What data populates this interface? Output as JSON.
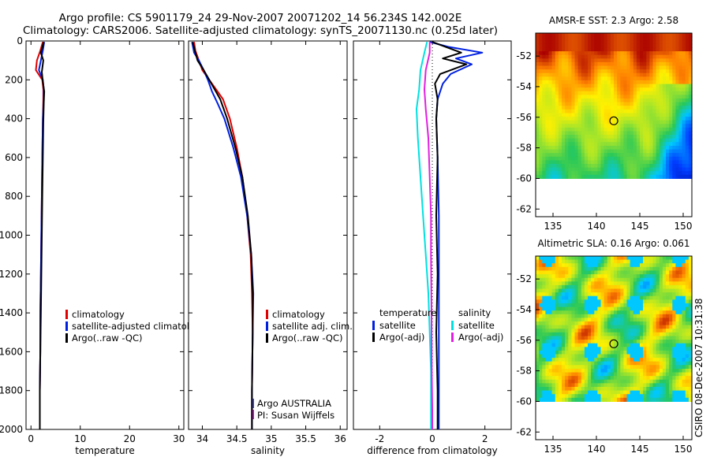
{
  "title": {
    "line1": "Argo profile: CS 5901179_24 29-Nov-2007 20071202_14 56.234S 142.002E",
    "line2": "Climatology: CARS2006. Satellite-adjusted climatology: synTS_20071130.nc (0.25d later)"
  },
  "footer": {
    "agency": "Argo AUSTRALIA",
    "pi": "PI: Susan Wijffels",
    "stamp": "CSIRO 08-Dec-2007 10:31:38"
  },
  "colors": {
    "climatology": "#e00000",
    "satellite": "#0020e0",
    "argo": "#000000",
    "sal_satellite": "#00e0e0",
    "sal_argo": "#e020e0"
  },
  "chart_data": [
    {
      "type": "line",
      "xlabel": "temperature",
      "ylabel": "",
      "xlim": [
        -1,
        31
      ],
      "ylim": [
        2000,
        0
      ],
      "xticks": [
        0,
        10,
        20,
        30
      ],
      "yticks": [
        0,
        200,
        400,
        600,
        800,
        1000,
        1200,
        1400,
        1600,
        1800,
        2000
      ],
      "legend": [
        "climatology",
        "satellite-adjusted climatology",
        "Argo(..raw -QC)"
      ],
      "series": [
        {
          "name": "climatology",
          "color": "#e00000",
          "x": [
            2.4,
            1.9,
            1.2,
            1.0,
            2.3,
            2.5,
            2.5,
            2.4,
            2.3,
            2.2,
            2.1,
            2.0,
            1.9,
            1.9,
            1.8,
            1.8,
            1.8
          ],
          "y": [
            5,
            50,
            100,
            150,
            200,
            250,
            300,
            400,
            600,
            800,
            1000,
            1200,
            1400,
            1600,
            1800,
            1950,
            2000
          ]
        },
        {
          "name": "satellite-adjusted climatology",
          "color": "#0020e0",
          "x": [
            2.7,
            2.4,
            2.0,
            1.6,
            2.4,
            2.6,
            2.6,
            2.4,
            2.3,
            2.2,
            2.1,
            2.0,
            1.9,
            1.9,
            1.8,
            1.8,
            1.8
          ],
          "y": [
            5,
            50,
            100,
            150,
            200,
            250,
            300,
            400,
            600,
            800,
            1000,
            1200,
            1400,
            1600,
            1800,
            1950,
            2000
          ]
        },
        {
          "name": "Argo(..raw -QC)",
          "color": "#000000",
          "x": [
            2.6,
            2.0,
            2.5,
            2.2,
            2.4,
            2.7,
            2.6,
            2.5,
            2.4,
            2.3,
            2.2,
            2.1,
            2.0,
            1.9,
            1.8,
            1.8,
            1.8
          ],
          "y": [
            5,
            60,
            100,
            160,
            210,
            260,
            320,
            420,
            600,
            800,
            1000,
            1200,
            1400,
            1600,
            1800,
            1950,
            2000
          ]
        }
      ]
    },
    {
      "type": "line",
      "xlabel": "salinity",
      "ylabel": "",
      "xlim": [
        33.8,
        36.1
      ],
      "ylim": [
        2000,
        0
      ],
      "xticks": [
        34,
        34.5,
        35,
        35.5,
        36
      ],
      "xticklabels": [
        "34",
        "34.5",
        "35",
        "35.5",
        "36"
      ],
      "legend": [
        "climatology",
        "satellite adj. clim.",
        "Argo(..raw -QC)"
      ],
      "series": [
        {
          "name": "climatology",
          "color": "#e00000",
          "x": [
            33.88,
            33.9,
            33.95,
            34.0,
            34.1,
            34.2,
            34.3,
            34.4,
            34.5,
            34.58,
            34.65,
            34.7,
            34.72,
            34.73,
            34.72,
            34.72
          ],
          "y": [
            5,
            50,
            100,
            150,
            200,
            250,
            300,
            400,
            550,
            700,
            900,
            1100,
            1300,
            1500,
            1800,
            2000
          ]
        },
        {
          "name": "satellite adj. clim.",
          "color": "#0020e0",
          "x": [
            33.85,
            33.88,
            33.95,
            34.02,
            34.08,
            34.14,
            34.22,
            34.32,
            34.45,
            34.56,
            34.65,
            34.71,
            34.74,
            34.73,
            34.72,
            34.72
          ],
          "y": [
            5,
            60,
            100,
            150,
            200,
            260,
            320,
            400,
            550,
            700,
            900,
            1100,
            1300,
            1500,
            1800,
            2000
          ]
        },
        {
          "name": "Argo(..raw -QC)",
          "color": "#000000",
          "x": [
            33.86,
            33.9,
            33.93,
            34.02,
            34.1,
            34.18,
            34.26,
            34.36,
            34.48,
            34.58,
            34.66,
            34.71,
            34.73,
            34.73,
            34.72,
            34.72
          ],
          "y": [
            5,
            60,
            100,
            150,
            200,
            250,
            300,
            400,
            550,
            700,
            900,
            1100,
            1300,
            1500,
            1800,
            2000
          ]
        }
      ]
    },
    {
      "type": "line",
      "xlabel": "difference from climatology",
      "ylabel": "",
      "xlim": [
        -3,
        3
      ],
      "ylim": [
        2000,
        0
      ],
      "xticks": [
        -2,
        0,
        2
      ],
      "legend_temperature": [
        "satellite",
        "Argo(-adj)"
      ],
      "legend_salinity": [
        "satellite",
        "Argo(-adj)"
      ],
      "legend_headers": [
        "temperature",
        "salinity"
      ],
      "series": [
        {
          "name": "satellite",
          "group": "temperature",
          "color": "#0020e0",
          "x": [
            -0.1,
            0.6,
            1.9,
            0.9,
            1.5,
            0.7,
            0.4,
            0.2,
            0.15,
            0.2,
            0.25,
            0.25,
            0.25,
            0.25,
            0.25
          ],
          "y": [
            5,
            30,
            60,
            90,
            120,
            170,
            220,
            300,
            400,
            600,
            900,
            1200,
            1500,
            1800,
            2000
          ]
        },
        {
          "name": "Argo(-adj)",
          "group": "temperature",
          "color": "#000000",
          "x": [
            0.0,
            0.5,
            1.1,
            0.4,
            1.3,
            0.3,
            0.1,
            0.2,
            0.15,
            0.2,
            0.15,
            0.2,
            0.15,
            0.2,
            0.2
          ],
          "y": [
            5,
            30,
            60,
            90,
            120,
            170,
            220,
            300,
            400,
            600,
            900,
            1200,
            1500,
            1800,
            2000
          ]
        },
        {
          "name": "satellite",
          "group": "salinity",
          "color": "#00e0e0",
          "x": [
            -0.2,
            -0.3,
            -0.45,
            -0.5,
            -0.6,
            -0.55,
            -0.45,
            -0.35,
            -0.25,
            -0.15,
            -0.1,
            -0.05,
            -0.05,
            -0.05
          ],
          "y": [
            5,
            60,
            150,
            250,
            350,
            500,
            700,
            900,
            1100,
            1300,
            1500,
            1700,
            1900,
            2000
          ]
        },
        {
          "name": "Argo(-adj)",
          "group": "salinity",
          "color": "#e020e0",
          "x": [
            -0.1,
            -0.1,
            -0.25,
            -0.3,
            -0.25,
            -0.15,
            -0.1,
            -0.05,
            -0.05,
            -0.03,
            -0.02,
            0.0,
            0.0
          ],
          "y": [
            5,
            60,
            150,
            250,
            350,
            500,
            700,
            900,
            1100,
            1400,
            1700,
            1900,
            2000
          ]
        }
      ]
    },
    {
      "type": "heatmap",
      "title": "AMSR-E SST: 2.3 Argo: 2.58",
      "xlim": [
        133,
        151
      ],
      "ylim": [
        -62.5,
        -50.5
      ],
      "xticks": [
        135,
        140,
        145,
        150
      ],
      "yticks": [
        -52,
        -54,
        -56,
        -58,
        -60,
        -62
      ],
      "data_extent": {
        "lon": [
          133,
          151
        ],
        "lat": [
          -60,
          -50.5
        ]
      },
      "float_position": {
        "lon": 142.002,
        "lat": -56.234
      }
    },
    {
      "type": "heatmap",
      "title": "Altimetric SLA: 0.16 Argo: 0.061",
      "xlim": [
        133,
        151
      ],
      "ylim": [
        -62.5,
        -50.5
      ],
      "xticks": [
        135,
        140,
        145,
        150
      ],
      "yticks": [
        -52,
        -54,
        -56,
        -58,
        -60,
        -62
      ],
      "data_extent": {
        "lon": [
          133,
          151
        ],
        "lat": [
          -60,
          -50.5
        ]
      },
      "float_position": {
        "lon": 142.002,
        "lat": -56.234
      }
    }
  ]
}
